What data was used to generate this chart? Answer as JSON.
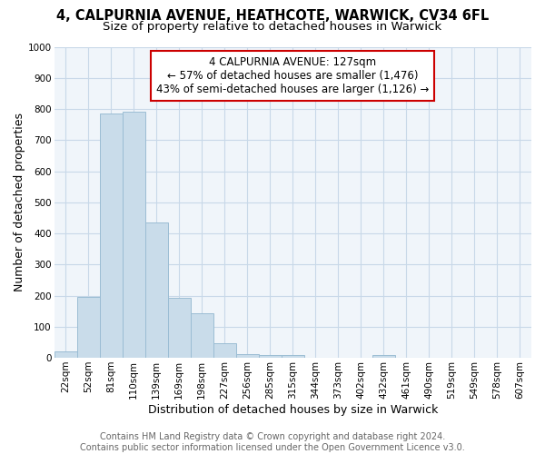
{
  "title1": "4, CALPURNIA AVENUE, HEATHCOTE, WARWICK, CV34 6FL",
  "title2": "Size of property relative to detached houses in Warwick",
  "xlabel": "Distribution of detached houses by size in Warwick",
  "ylabel": "Number of detached properties",
  "categories": [
    "22sqm",
    "52sqm",
    "81sqm",
    "110sqm",
    "139sqm",
    "169sqm",
    "198sqm",
    "227sqm",
    "256sqm",
    "285sqm",
    "315sqm",
    "344sqm",
    "373sqm",
    "402sqm",
    "432sqm",
    "461sqm",
    "490sqm",
    "519sqm",
    "549sqm",
    "578sqm",
    "607sqm"
  ],
  "bar_values": [
    20,
    195,
    785,
    790,
    435,
    192,
    142,
    48,
    13,
    10,
    10,
    0,
    0,
    0,
    10,
    0,
    0,
    0,
    0,
    0,
    0
  ],
  "bar_color": "#c9dcea",
  "bar_edge_color": "#9bbdd4",
  "annotation_lines": [
    "4 CALPURNIA AVENUE: 127sqm",
    "← 57% of detached houses are smaller (1,476)",
    "43% of semi-detached houses are larger (1,126) →"
  ],
  "annotation_box_color": "#ffffff",
  "annotation_box_edge_color": "#cc0000",
  "ylim": [
    0,
    1000
  ],
  "yticks": [
    0,
    100,
    200,
    300,
    400,
    500,
    600,
    700,
    800,
    900,
    1000
  ],
  "footer_line1": "Contains HM Land Registry data © Crown copyright and database right 2024.",
  "footer_line2": "Contains public sector information licensed under the Open Government Licence v3.0.",
  "bg_color": "#ffffff",
  "plot_bg_color": "#f0f5fa",
  "grid_color": "#c8d8e8",
  "title1_fontsize": 10.5,
  "title2_fontsize": 9.5,
  "axis_label_fontsize": 9,
  "tick_fontsize": 7.5,
  "footer_fontsize": 7,
  "annotation_fontsize": 8.5
}
